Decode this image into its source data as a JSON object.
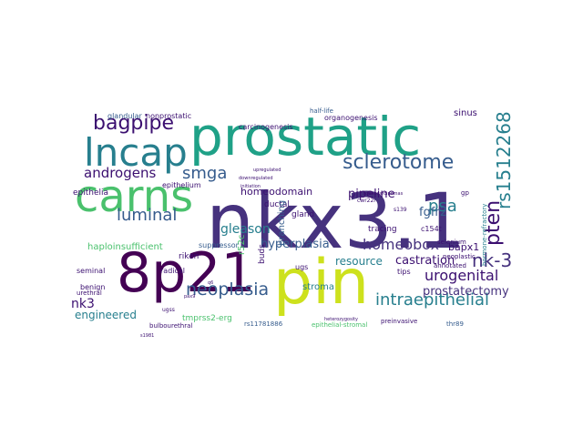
{
  "palette": {
    "purple": "#46327e",
    "dark": "#3b0f70",
    "blue": "#365c8d",
    "teal": "#277f8e",
    "green": "#1fa187",
    "lime": "#4ac16d",
    "yellow": "#a0da39",
    "bright": "#cde11d",
    "navy": "#440154"
  },
  "words": [
    "nkx3.1",
    "prostatic",
    "pin",
    "8p21",
    "carns",
    "lncap",
    "bagpipe",
    "sclerotome",
    "rs1512268",
    "androgens",
    "smga",
    "psa",
    "luminal",
    "pten",
    "nk-3",
    "neoplasia",
    "intraepithelial",
    "urogenital",
    "homeobox",
    "homeodomain",
    "hyperplasia",
    "pipeline",
    "fgfr2",
    "gleason",
    "prostatectomy",
    "castration",
    "resource",
    "engineered",
    "nk3",
    "haploinsufficient",
    "bapx1",
    "epithelia",
    "epithelium",
    "glandular",
    "nonprostatic",
    "carcinogenesis",
    "organogenesis",
    "half-life",
    "sinus",
    "ductal",
    "gland",
    "branching",
    "tracing",
    "annotated",
    "r52c",
    "buds",
    "stroma",
    "ugs",
    "riken",
    "suppressor",
    "seminal",
    "benign",
    "urethral",
    "radical",
    "tmprss2-erg",
    "bulbourethral",
    "rs11781886",
    "epithelial-stromal",
    "preinvasive",
    "thr89",
    "c154t",
    "s139",
    "neoplastic",
    "selenium",
    "tips",
    "hormone-refractory",
    "cwr22r",
    "adenocarcinomas",
    "s1981",
    "ugss",
    "pax9",
    "upregulated",
    "downregulated",
    "initiation",
    "heterozygosity",
    "gp",
    "q6"
  ]
}
